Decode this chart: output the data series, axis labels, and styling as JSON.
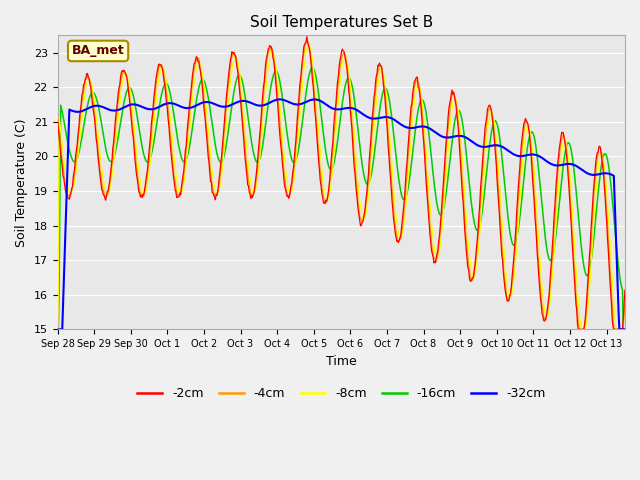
{
  "title": "Soil Temperatures Set B",
  "xlabel": "Time",
  "ylabel": "Soil Temperature (C)",
  "ylim": [
    15.0,
    23.5
  ],
  "yticks": [
    15.0,
    16.0,
    17.0,
    18.0,
    19.0,
    20.0,
    21.0,
    22.0,
    23.0
  ],
  "colors": {
    "-2cm": "#ff0000",
    "-4cm": "#ff9900",
    "-8cm": "#ffff00",
    "-16cm": "#00cc00",
    "-32cm": "#0000ff"
  },
  "annotation_label": "BA_met",
  "annotation_facecolor": "#ffffcc",
  "annotation_edgecolor": "#aa8800",
  "annotation_textcolor": "#660000",
  "plot_bg": "#e8e8e8",
  "fig_bg": "#f0f0f0",
  "n_points": 720,
  "start_day": 0.0,
  "end_day": 15.5,
  "x_tick_positions": [
    0,
    1,
    2,
    3,
    4,
    5,
    6,
    7,
    8,
    9,
    10,
    11,
    12,
    13,
    14,
    15
  ],
  "x_tick_labels": [
    "Sep 28",
    "Sep 29",
    "Sep 30",
    "Oct 1",
    "Oct 2",
    "Oct 3",
    "Oct 4",
    "Oct 5",
    "Oct 6",
    "Oct 7",
    "Oct 8",
    "Oct 9",
    "Oct 10",
    "Oct 11",
    "Oct 12",
    "Oct 13"
  ]
}
